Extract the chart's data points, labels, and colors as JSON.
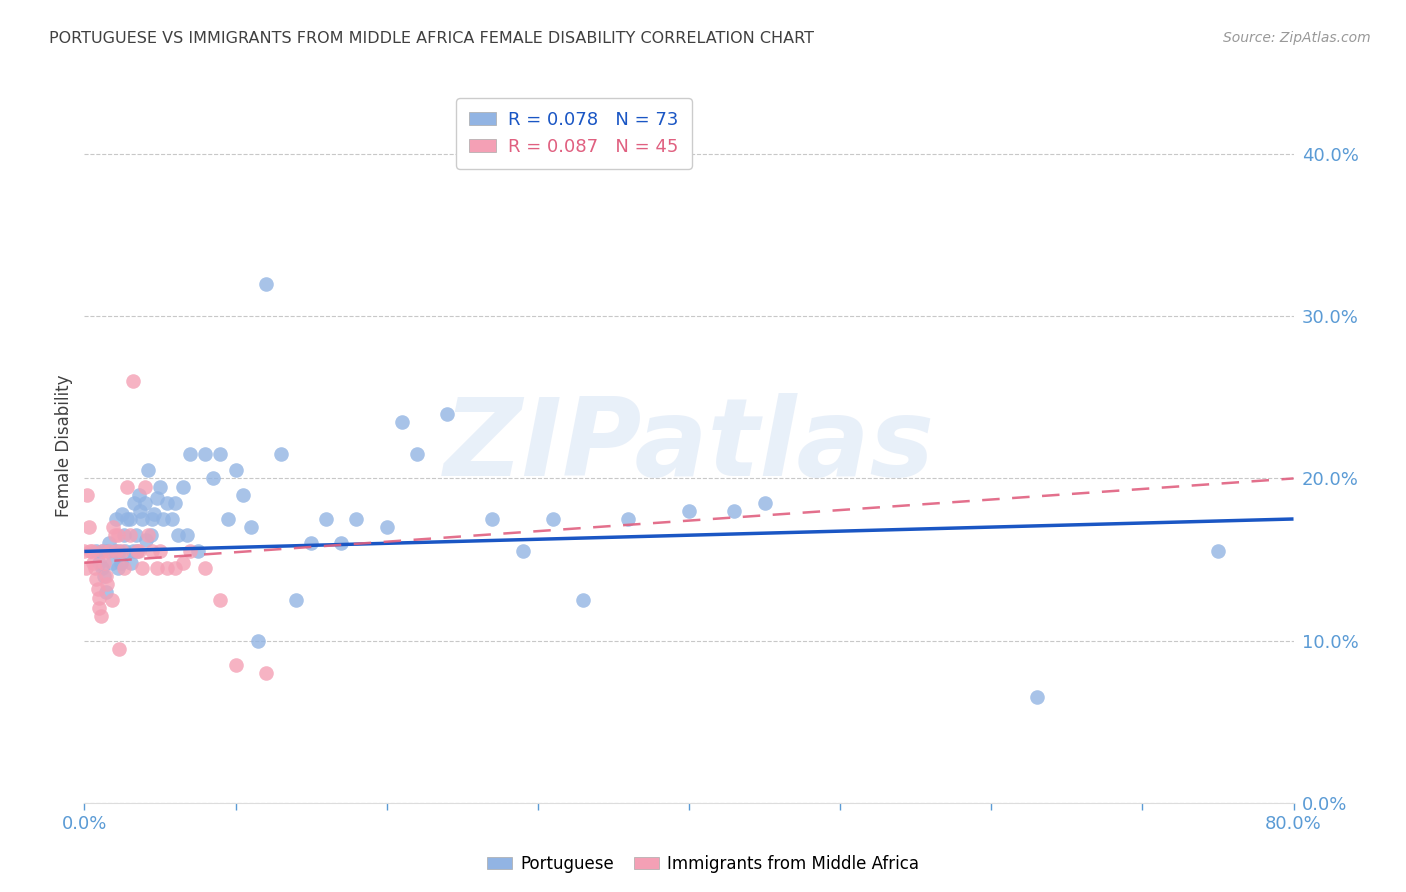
{
  "title": "PORTUGUESE VS IMMIGRANTS FROM MIDDLE AFRICA FEMALE DISABILITY CORRELATION CHART",
  "source": "Source: ZipAtlas.com",
  "ylabel": "Female Disability",
  "xlim": [
    0.0,
    0.8
  ],
  "ylim": [
    0.0,
    0.44
  ],
  "yticks": [
    0.0,
    0.1,
    0.2,
    0.3,
    0.4
  ],
  "xticks": [
    0.0,
    0.1,
    0.2,
    0.3,
    0.4,
    0.5,
    0.6,
    0.7,
    0.8
  ],
  "blue_R": 0.078,
  "blue_N": 73,
  "pink_R": 0.087,
  "pink_N": 45,
  "blue_label": "Portuguese",
  "pink_label": "Immigrants from Middle Africa",
  "blue_color": "#92b4e3",
  "pink_color": "#f4a0b5",
  "blue_line_color": "#1a56c4",
  "pink_line_color": "#e06080",
  "background_color": "#ffffff",
  "grid_color": "#c8c8c8",
  "title_color": "#404040",
  "tick_color": "#5b9bd5",
  "watermark": "ZIPatlas",
  "blue_x": [
    0.008,
    0.01,
    0.012,
    0.012,
    0.013,
    0.014,
    0.015,
    0.016,
    0.018,
    0.02,
    0.021,
    0.022,
    0.023,
    0.024,
    0.025,
    0.026,
    0.027,
    0.028,
    0.03,
    0.031,
    0.032,
    0.033,
    0.034,
    0.035,
    0.036,
    0.037,
    0.038,
    0.04,
    0.041,
    0.042,
    0.044,
    0.045,
    0.046,
    0.048,
    0.05,
    0.052,
    0.055,
    0.058,
    0.06,
    0.062,
    0.065,
    0.068,
    0.07,
    0.075,
    0.08,
    0.085,
    0.09,
    0.095,
    0.1,
    0.105,
    0.11,
    0.115,
    0.12,
    0.13,
    0.14,
    0.15,
    0.16,
    0.17,
    0.18,
    0.2,
    0.21,
    0.22,
    0.24,
    0.27,
    0.29,
    0.31,
    0.33,
    0.36,
    0.4,
    0.43,
    0.45,
    0.63,
    0.75
  ],
  "blue_y": [
    0.155,
    0.148,
    0.155,
    0.145,
    0.14,
    0.13,
    0.155,
    0.16,
    0.148,
    0.155,
    0.175,
    0.145,
    0.155,
    0.148,
    0.178,
    0.165,
    0.155,
    0.175,
    0.175,
    0.148,
    0.155,
    0.185,
    0.165,
    0.155,
    0.19,
    0.18,
    0.175,
    0.185,
    0.162,
    0.205,
    0.165,
    0.175,
    0.178,
    0.188,
    0.195,
    0.175,
    0.185,
    0.175,
    0.185,
    0.165,
    0.195,
    0.165,
    0.215,
    0.155,
    0.215,
    0.2,
    0.215,
    0.175,
    0.205,
    0.19,
    0.17,
    0.1,
    0.32,
    0.215,
    0.125,
    0.16,
    0.175,
    0.16,
    0.175,
    0.17,
    0.235,
    0.215,
    0.24,
    0.175,
    0.155,
    0.175,
    0.125,
    0.175,
    0.18,
    0.18,
    0.185,
    0.065,
    0.155
  ],
  "pink_x": [
    0.0,
    0.001,
    0.002,
    0.003,
    0.004,
    0.005,
    0.006,
    0.007,
    0.008,
    0.009,
    0.01,
    0.01,
    0.011,
    0.012,
    0.013,
    0.014,
    0.015,
    0.016,
    0.018,
    0.019,
    0.02,
    0.021,
    0.022,
    0.023,
    0.025,
    0.026,
    0.028,
    0.03,
    0.032,
    0.035,
    0.036,
    0.038,
    0.04,
    0.042,
    0.045,
    0.048,
    0.05,
    0.055,
    0.06,
    0.065,
    0.07,
    0.08,
    0.09,
    0.1,
    0.12
  ],
  "pink_y": [
    0.155,
    0.145,
    0.19,
    0.17,
    0.155,
    0.155,
    0.148,
    0.145,
    0.138,
    0.132,
    0.126,
    0.12,
    0.115,
    0.155,
    0.148,
    0.14,
    0.135,
    0.155,
    0.125,
    0.17,
    0.165,
    0.155,
    0.165,
    0.095,
    0.155,
    0.145,
    0.195,
    0.165,
    0.26,
    0.155,
    0.155,
    0.145,
    0.195,
    0.165,
    0.155,
    0.145,
    0.155,
    0.145,
    0.145,
    0.148,
    0.155,
    0.145,
    0.125,
    0.085,
    0.08
  ]
}
